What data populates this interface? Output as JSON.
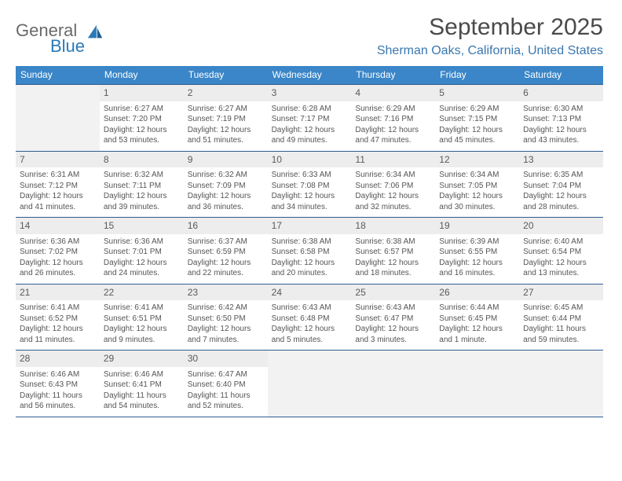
{
  "logo": {
    "word1": "General",
    "word2": "Blue"
  },
  "title": "September 2025",
  "subtitle": "Sherman Oaks, California, United States",
  "colors": {
    "header_bg": "#3a86c8",
    "header_text": "#ffffff",
    "rule": "#2f5d8f",
    "subtitle": "#3a78b0",
    "body_text": "#555555",
    "daynum_bg": "#ededed",
    "blank_bg": "#f2f2f2",
    "logo_accent": "#2a7ab8"
  },
  "weekdays": [
    "Sunday",
    "Monday",
    "Tuesday",
    "Wednesday",
    "Thursday",
    "Friday",
    "Saturday"
  ],
  "weeks": [
    [
      null,
      {
        "day": "1",
        "sunrise": "Sunrise: 6:27 AM",
        "sunset": "Sunset: 7:20 PM",
        "daylight": "Daylight: 12 hours and 53 minutes."
      },
      {
        "day": "2",
        "sunrise": "Sunrise: 6:27 AM",
        "sunset": "Sunset: 7:19 PM",
        "daylight": "Daylight: 12 hours and 51 minutes."
      },
      {
        "day": "3",
        "sunrise": "Sunrise: 6:28 AM",
        "sunset": "Sunset: 7:17 PM",
        "daylight": "Daylight: 12 hours and 49 minutes."
      },
      {
        "day": "4",
        "sunrise": "Sunrise: 6:29 AM",
        "sunset": "Sunset: 7:16 PM",
        "daylight": "Daylight: 12 hours and 47 minutes."
      },
      {
        "day": "5",
        "sunrise": "Sunrise: 6:29 AM",
        "sunset": "Sunset: 7:15 PM",
        "daylight": "Daylight: 12 hours and 45 minutes."
      },
      {
        "day": "6",
        "sunrise": "Sunrise: 6:30 AM",
        "sunset": "Sunset: 7:13 PM",
        "daylight": "Daylight: 12 hours and 43 minutes."
      }
    ],
    [
      {
        "day": "7",
        "sunrise": "Sunrise: 6:31 AM",
        "sunset": "Sunset: 7:12 PM",
        "daylight": "Daylight: 12 hours and 41 minutes."
      },
      {
        "day": "8",
        "sunrise": "Sunrise: 6:32 AM",
        "sunset": "Sunset: 7:11 PM",
        "daylight": "Daylight: 12 hours and 39 minutes."
      },
      {
        "day": "9",
        "sunrise": "Sunrise: 6:32 AM",
        "sunset": "Sunset: 7:09 PM",
        "daylight": "Daylight: 12 hours and 36 minutes."
      },
      {
        "day": "10",
        "sunrise": "Sunrise: 6:33 AM",
        "sunset": "Sunset: 7:08 PM",
        "daylight": "Daylight: 12 hours and 34 minutes."
      },
      {
        "day": "11",
        "sunrise": "Sunrise: 6:34 AM",
        "sunset": "Sunset: 7:06 PM",
        "daylight": "Daylight: 12 hours and 32 minutes."
      },
      {
        "day": "12",
        "sunrise": "Sunrise: 6:34 AM",
        "sunset": "Sunset: 7:05 PM",
        "daylight": "Daylight: 12 hours and 30 minutes."
      },
      {
        "day": "13",
        "sunrise": "Sunrise: 6:35 AM",
        "sunset": "Sunset: 7:04 PM",
        "daylight": "Daylight: 12 hours and 28 minutes."
      }
    ],
    [
      {
        "day": "14",
        "sunrise": "Sunrise: 6:36 AM",
        "sunset": "Sunset: 7:02 PM",
        "daylight": "Daylight: 12 hours and 26 minutes."
      },
      {
        "day": "15",
        "sunrise": "Sunrise: 6:36 AM",
        "sunset": "Sunset: 7:01 PM",
        "daylight": "Daylight: 12 hours and 24 minutes."
      },
      {
        "day": "16",
        "sunrise": "Sunrise: 6:37 AM",
        "sunset": "Sunset: 6:59 PM",
        "daylight": "Daylight: 12 hours and 22 minutes."
      },
      {
        "day": "17",
        "sunrise": "Sunrise: 6:38 AM",
        "sunset": "Sunset: 6:58 PM",
        "daylight": "Daylight: 12 hours and 20 minutes."
      },
      {
        "day": "18",
        "sunrise": "Sunrise: 6:38 AM",
        "sunset": "Sunset: 6:57 PM",
        "daylight": "Daylight: 12 hours and 18 minutes."
      },
      {
        "day": "19",
        "sunrise": "Sunrise: 6:39 AM",
        "sunset": "Sunset: 6:55 PM",
        "daylight": "Daylight: 12 hours and 16 minutes."
      },
      {
        "day": "20",
        "sunrise": "Sunrise: 6:40 AM",
        "sunset": "Sunset: 6:54 PM",
        "daylight": "Daylight: 12 hours and 13 minutes."
      }
    ],
    [
      {
        "day": "21",
        "sunrise": "Sunrise: 6:41 AM",
        "sunset": "Sunset: 6:52 PM",
        "daylight": "Daylight: 12 hours and 11 minutes."
      },
      {
        "day": "22",
        "sunrise": "Sunrise: 6:41 AM",
        "sunset": "Sunset: 6:51 PM",
        "daylight": "Daylight: 12 hours and 9 minutes."
      },
      {
        "day": "23",
        "sunrise": "Sunrise: 6:42 AM",
        "sunset": "Sunset: 6:50 PM",
        "daylight": "Daylight: 12 hours and 7 minutes."
      },
      {
        "day": "24",
        "sunrise": "Sunrise: 6:43 AM",
        "sunset": "Sunset: 6:48 PM",
        "daylight": "Daylight: 12 hours and 5 minutes."
      },
      {
        "day": "25",
        "sunrise": "Sunrise: 6:43 AM",
        "sunset": "Sunset: 6:47 PM",
        "daylight": "Daylight: 12 hours and 3 minutes."
      },
      {
        "day": "26",
        "sunrise": "Sunrise: 6:44 AM",
        "sunset": "Sunset: 6:45 PM",
        "daylight": "Daylight: 12 hours and 1 minute."
      },
      {
        "day": "27",
        "sunrise": "Sunrise: 6:45 AM",
        "sunset": "Sunset: 6:44 PM",
        "daylight": "Daylight: 11 hours and 59 minutes."
      }
    ],
    [
      {
        "day": "28",
        "sunrise": "Sunrise: 6:46 AM",
        "sunset": "Sunset: 6:43 PM",
        "daylight": "Daylight: 11 hours and 56 minutes."
      },
      {
        "day": "29",
        "sunrise": "Sunrise: 6:46 AM",
        "sunset": "Sunset: 6:41 PM",
        "daylight": "Daylight: 11 hours and 54 minutes."
      },
      {
        "day": "30",
        "sunrise": "Sunrise: 6:47 AM",
        "sunset": "Sunset: 6:40 PM",
        "daylight": "Daylight: 11 hours and 52 minutes."
      },
      null,
      null,
      null,
      null
    ]
  ]
}
